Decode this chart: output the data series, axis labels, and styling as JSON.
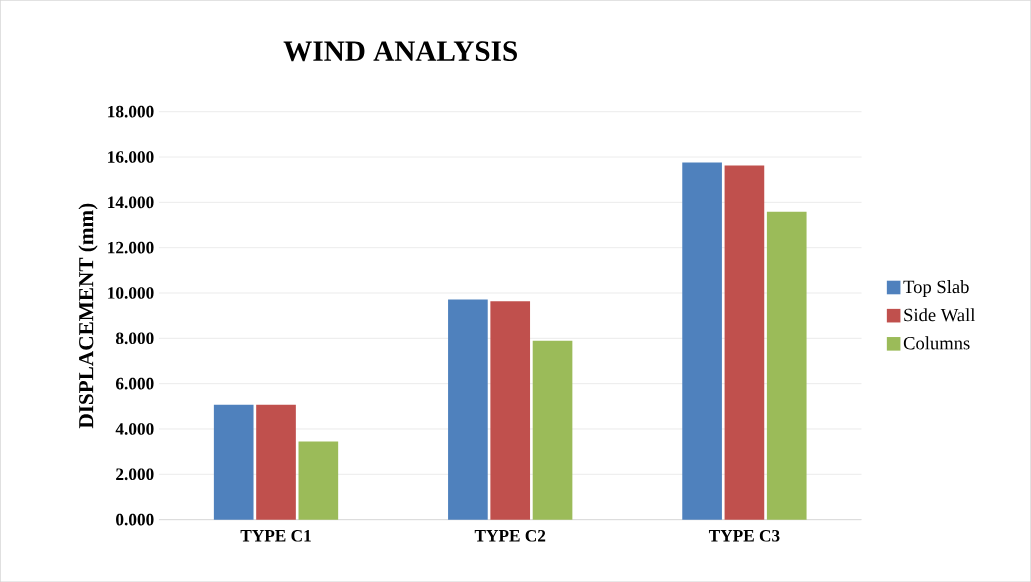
{
  "chart_data": {
    "type": "bar",
    "title": "WIND ANALYSIS",
    "ylabel": "DISPLACEMENT (mm)",
    "categories": [
      "TYPE C1",
      "TYPE C2",
      "TYPE C3"
    ],
    "series": [
      {
        "name": "Top Slab",
        "color": "#4f81bd",
        "values": [
          5.07,
          9.71,
          15.76
        ]
      },
      {
        "name": "Side Wall",
        "color": "#c0504d",
        "values": [
          5.07,
          9.64,
          15.63
        ]
      },
      {
        "name": "Columns",
        "color": "#9bbb59",
        "values": [
          3.45,
          7.89,
          13.59
        ]
      }
    ],
    "ylim": [
      0,
      18
    ],
    "yticks": [
      {
        "value": 0,
        "label": "0.000"
      },
      {
        "value": 2,
        "label": "2.000"
      },
      {
        "value": 4,
        "label": "4.000"
      },
      {
        "value": 6,
        "label": "6.000"
      },
      {
        "value": 8,
        "label": "8.000"
      },
      {
        "value": 10,
        "label": "10.000"
      },
      {
        "value": 12,
        "label": "12.000"
      },
      {
        "value": 14,
        "label": "14.000"
      },
      {
        "value": 16,
        "label": "16.000"
      },
      {
        "value": 18,
        "label": "18.000"
      }
    ],
    "grid": "y",
    "legend": "right"
  }
}
